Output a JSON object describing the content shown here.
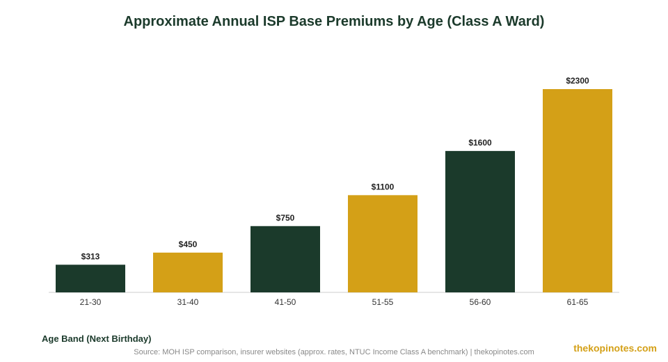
{
  "chart_data": {
    "type": "bar",
    "title": "Approximate Annual ISP Base Premiums by Age (Class A Ward)",
    "xlabel": "Age Band (Next Birthday)",
    "ylabel": "",
    "categories": [
      "21-30",
      "31-40",
      "41-50",
      "51-55",
      "56-60",
      "61-65"
    ],
    "values": [
      313,
      450,
      750,
      1100,
      1600,
      2300
    ],
    "value_labels": [
      "$313",
      "$450",
      "$750",
      "$1100",
      "$1600",
      "$2300"
    ],
    "bar_colors": [
      "#1b3a2b",
      "#d4a017",
      "#1b3a2b",
      "#d4a017",
      "#1b3a2b",
      "#d4a017"
    ],
    "ylim": [
      0,
      2300
    ],
    "grid": false,
    "legend": "none"
  },
  "colors": {
    "dark_green": "#1b3a2b",
    "gold": "#d4a017"
  },
  "footer": {
    "source": "Source: MOH ISP comparison, insurer websites (approx. rates, NTUC Income Class A benchmark) | thekopinotes.com",
    "watermark": "thekopinotes.com"
  }
}
